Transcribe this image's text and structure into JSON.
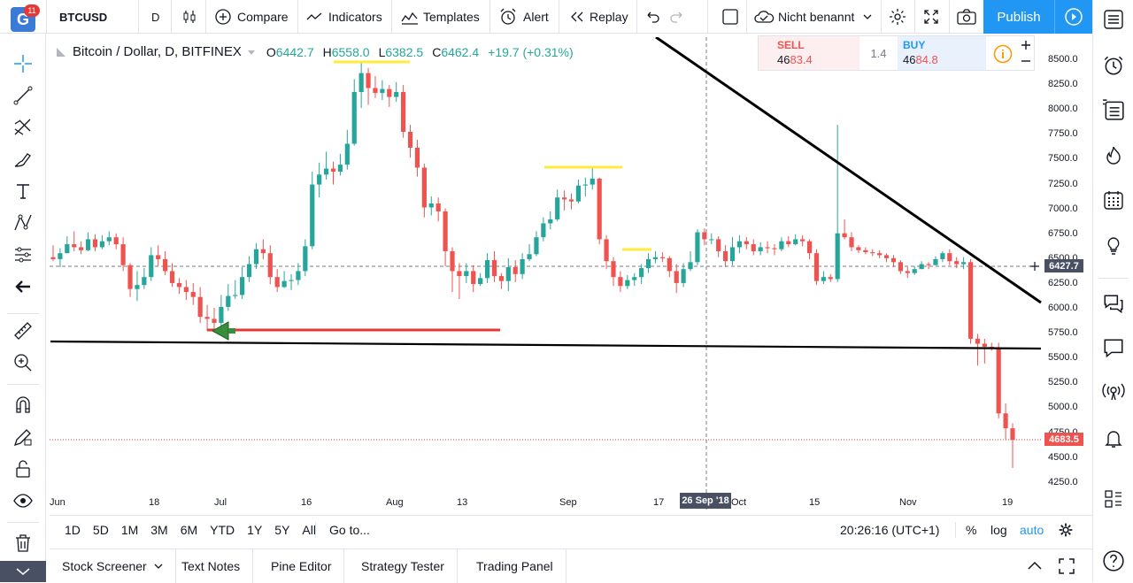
{
  "topbar": {
    "symbol": "BTCUSD",
    "interval": "D",
    "compare": "Compare",
    "indicators": "Indicators",
    "templates": "Templates",
    "alert": "Alert",
    "replay": "Replay",
    "layout_name": "Nicht benannt",
    "publish": "Publish",
    "notification_count": "11",
    "logo_letter": "G"
  },
  "legend": {
    "title": "Bitcoin / Dollar, D, BITFINEX",
    "o_label": "O",
    "o": "6442.7",
    "h_label": "H",
    "h": "6558.0",
    "l_label": "L",
    "l": "6382.5",
    "c_label": "C",
    "c": "6462.4",
    "change": "+19.7 (+0.31%)"
  },
  "trade": {
    "sell_label": "SELL",
    "sell_big": "46",
    "sell_small": "83.4",
    "spread": "1.4",
    "buy_label": "BUY",
    "buy_big": "46",
    "buy_small": "84.8"
  },
  "price_axis": {
    "ticks": [
      "8500.0",
      "8250.0",
      "8000.0",
      "7750.0",
      "7500.0",
      "7250.0",
      "7000.0",
      "6750.0",
      "6500.0",
      "6250.0",
      "6000.0",
      "5750.0",
      "5500.0",
      "5250.0",
      "5000.0",
      "4750.0",
      "4500.0",
      "4250.0"
    ],
    "crosshair_price": "6427.7",
    "last_price": "4683.5"
  },
  "time_axis": {
    "labels": [
      "Jun",
      "18",
      "Jul",
      "16",
      "Aug",
      "13",
      "Sep",
      "17",
      "Oct",
      "15",
      "Nov",
      "19"
    ],
    "crosshair_date": "26 Sep '18"
  },
  "timebar": {
    "ranges": [
      "1D",
      "5D",
      "1M",
      "3M",
      "6M",
      "YTD",
      "1Y",
      "5Y",
      "All"
    ],
    "goto": "Go to...",
    "clock": "20:26:16 (UTC+1)",
    "percent": "%",
    "log": "log",
    "auto": "auto"
  },
  "bottombar": {
    "tabs": [
      "Stock Screener",
      "Text Notes",
      "Pine Editor",
      "Strategy Tester",
      "Trading Panel"
    ]
  },
  "colors": {
    "up": "#26a69a",
    "down": "#ef5350",
    "accent": "#2196f3",
    "hline_yellow": "#ffeb3b",
    "arrow_red": "#e53935",
    "arrow_green": "#388e3c"
  },
  "chart_data": {
    "type": "candlestick",
    "title": "Bitcoin / Dollar, D, BITFINEX",
    "ylim": [
      4250,
      8650
    ],
    "candles": [
      [
        6520,
        6500,
        6640,
        6480
      ],
      [
        6500,
        6560,
        6610,
        6420
      ],
      [
        6560,
        6650,
        6730,
        6560
      ],
      [
        6650,
        6620,
        6780,
        6580
      ],
      [
        6620,
        6590,
        6680,
        6550
      ],
      [
        6590,
        6700,
        6770,
        6580
      ],
      [
        6700,
        6620,
        6750,
        6580
      ],
      [
        6620,
        6680,
        6740,
        6600
      ],
      [
        6680,
        6720,
        6780,
        6640
      ],
      [
        6720,
        6650,
        6760,
        6600
      ],
      [
        6650,
        6440,
        6720,
        6380
      ],
      [
        6440,
        6200,
        6460,
        6120
      ],
      [
        6200,
        6240,
        6380,
        6080
      ],
      [
        6240,
        6320,
        6410,
        6200
      ],
      [
        6320,
        6540,
        6620,
        6280
      ],
      [
        6540,
        6500,
        6640,
        6430
      ],
      [
        6500,
        6380,
        6580,
        6340
      ],
      [
        6380,
        6260,
        6460,
        6220
      ],
      [
        6260,
        6220,
        6310,
        6150
      ],
      [
        6220,
        6170,
        6290,
        6090
      ],
      [
        6170,
        6120,
        6260,
        6040
      ],
      [
        6120,
        5920,
        6220,
        5860
      ],
      [
        5920,
        5900,
        6040,
        5780
      ],
      [
        5900,
        5860,
        6010,
        5760
      ],
      [
        5860,
        6020,
        6140,
        5830
      ],
      [
        6020,
        6130,
        6250,
        5980
      ],
      [
        6130,
        6140,
        6290,
        6100
      ],
      [
        6140,
        6320,
        6420,
        6100
      ],
      [
        6320,
        6450,
        6530,
        6270
      ],
      [
        6450,
        6600,
        6660,
        6400
      ],
      [
        6600,
        6560,
        6700,
        6500
      ],
      [
        6560,
        6320,
        6640,
        6250
      ],
      [
        6320,
        6220,
        6400,
        6170
      ],
      [
        6220,
        6280,
        6380,
        6210
      ],
      [
        6280,
        6290,
        6350,
        6190
      ],
      [
        6290,
        6380,
        6460,
        6240
      ],
      [
        6380,
        6630,
        6700,
        6330
      ],
      [
        6630,
        7250,
        7380,
        6600
      ],
      [
        7250,
        7350,
        7470,
        7120
      ],
      [
        7350,
        7410,
        7580,
        7300
      ],
      [
        7410,
        7380,
        7480,
        7250
      ],
      [
        7380,
        7450,
        7560,
        7340
      ],
      [
        7450,
        7660,
        7800,
        7400
      ],
      [
        7660,
        8180,
        8310,
        7640
      ],
      [
        8180,
        8370,
        8480,
        8020
      ],
      [
        8370,
        8220,
        8420,
        8050
      ],
      [
        8220,
        8170,
        8340,
        8120
      ],
      [
        8170,
        8210,
        8300,
        8100
      ],
      [
        8210,
        8130,
        8250,
        8030
      ],
      [
        8130,
        8180,
        8280,
        8080
      ],
      [
        8180,
        7780,
        8250,
        7720
      ],
      [
        7780,
        7620,
        7850,
        7520
      ],
      [
        7620,
        7420,
        7700,
        7330
      ],
      [
        7420,
        7020,
        7460,
        6920
      ],
      [
        7020,
        7060,
        7130,
        6940
      ],
      [
        7060,
        6980,
        7120,
        6880
      ],
      [
        6980,
        6580,
        7010,
        6430
      ],
      [
        6580,
        6380,
        6620,
        6170
      ],
      [
        6380,
        6330,
        6460,
        6100
      ],
      [
        6330,
        6380,
        6460,
        6260
      ],
      [
        6380,
        6250,
        6440,
        6170
      ],
      [
        6250,
        6310,
        6360,
        6230
      ],
      [
        6310,
        6490,
        6560,
        6260
      ],
      [
        6490,
        6330,
        6580,
        6270
      ],
      [
        6330,
        6280,
        6360,
        6200
      ],
      [
        6280,
        6420,
        6510,
        6180
      ],
      [
        6420,
        6350,
        6490,
        6270
      ],
      [
        6350,
        6500,
        6560,
        6300
      ],
      [
        6500,
        6550,
        6650,
        6480
      ],
      [
        6550,
        6720,
        6780,
        6530
      ],
      [
        6720,
        6860,
        6920,
        6680
      ],
      [
        6860,
        6900,
        6980,
        6800
      ],
      [
        6900,
        7120,
        7200,
        6880
      ],
      [
        7120,
        7100,
        7190,
        6990
      ],
      [
        7100,
        7080,
        7160,
        7000
      ],
      [
        7080,
        7240,
        7300,
        7060
      ],
      [
        7240,
        7250,
        7320,
        7130
      ],
      [
        7250,
        7310,
        7430,
        7200
      ],
      [
        7310,
        6700,
        7320,
        6650
      ],
      [
        6700,
        6480,
        6740,
        6400
      ],
      [
        6480,
        6320,
        6520,
        6230
      ],
      [
        6320,
        6230,
        6380,
        6170
      ],
      [
        6230,
        6290,
        6340,
        6200
      ],
      [
        6290,
        6320,
        6360,
        6230
      ],
      [
        6320,
        6410,
        6450,
        6250
      ],
      [
        6410,
        6500,
        6560,
        6360
      ],
      [
        6500,
        6520,
        6580,
        6460
      ],
      [
        6520,
        6510,
        6570,
        6470
      ],
      [
        6510,
        6380,
        6530,
        6320
      ],
      [
        6380,
        6260,
        6450,
        6160
      ],
      [
        6260,
        6400,
        6460,
        6220
      ],
      [
        6400,
        6470,
        6580,
        6380
      ],
      [
        6470,
        6770,
        6800,
        6440
      ],
      [
        6770,
        6700,
        6810,
        6640
      ],
      [
        6700,
        6700,
        6760,
        6650
      ],
      [
        6700,
        6580,
        6730,
        6520
      ],
      [
        6580,
        6480,
        6640,
        6420
      ],
      [
        6480,
        6620,
        6720,
        6440
      ],
      [
        6620,
        6680,
        6740,
        6560
      ],
      [
        6680,
        6650,
        6720,
        6600
      ],
      [
        6650,
        6580,
        6700,
        6540
      ],
      [
        6580,
        6620,
        6670,
        6540
      ],
      [
        6620,
        6610,
        6680,
        6560
      ],
      [
        6610,
        6600,
        6650,
        6540
      ],
      [
        6600,
        6680,
        6720,
        6580
      ],
      [
        6680,
        6650,
        6730,
        6620
      ],
      [
        6650,
        6700,
        6750,
        6640
      ],
      [
        6700,
        6680,
        6740,
        6630
      ],
      [
        6680,
        6560,
        6700,
        6500
      ],
      [
        6560,
        6280,
        6600,
        6240
      ],
      [
        6280,
        6320,
        6380,
        6250
      ],
      [
        6320,
        6300,
        6350,
        6270
      ],
      [
        6300,
        6760,
        7850,
        6270
      ],
      [
        6760,
        6720,
        6900,
        6700
      ],
      [
        6720,
        6620,
        6770,
        6580
      ],
      [
        6620,
        6590,
        6640,
        6560
      ],
      [
        6590,
        6570,
        6620,
        6550
      ],
      [
        6570,
        6560,
        6600,
        6530
      ],
      [
        6560,
        6540,
        6590,
        6510
      ],
      [
        6540,
        6510,
        6560,
        6470
      ],
      [
        6510,
        6470,
        6540,
        6420
      ],
      [
        6470,
        6380,
        6490,
        6350
      ],
      [
        6380,
        6360,
        6420,
        6310
      ],
      [
        6360,
        6400,
        6430,
        6340
      ],
      [
        6400,
        6450,
        6480,
        6400
      ],
      [
        6450,
        6440,
        6470,
        6400
      ],
      [
        6440,
        6500,
        6530,
        6440
      ],
      [
        6500,
        6560,
        6580,
        6470
      ],
      [
        6560,
        6480,
        6600,
        6440
      ],
      [
        6480,
        6450,
        6520,
        6410
      ],
      [
        6450,
        6470,
        6520,
        6400
      ],
      [
        6470,
        5700,
        6500,
        5650
      ],
      [
        5700,
        5650,
        5750,
        5430
      ],
      [
        5650,
        5620,
        5700,
        5450
      ],
      [
        5620,
        5600,
        5660,
        5580
      ],
      [
        5600,
        4950,
        5660,
        4900
      ],
      [
        4950,
        4800,
        5050,
        4690
      ],
      [
        4800,
        4683.5,
        4850,
        4400
      ]
    ]
  }
}
